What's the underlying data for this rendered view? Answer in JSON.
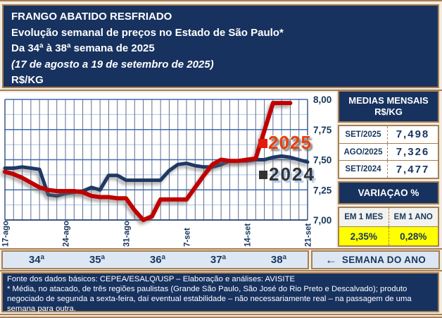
{
  "header": {
    "line1": "FRANGO ABATIDO RESFRIADO",
    "line2": "Evolução semanal de preços no Estado de São Paulo*",
    "line3": "Da 34ª à 38ª semana de 2025",
    "line4": "(17 de agosto a 19 de setembro de 2025)",
    "line5": "R$/KG"
  },
  "chart_data": {
    "type": "line",
    "title": "Evolução semanal de preços do frango abatido resfriado no Estado de São Paulo (R$/KG)",
    "ylabel": "R$/KG",
    "ylim": [
      7.0,
      8.0
    ],
    "yticks": [
      {
        "v": 8.0,
        "label": "8,00"
      },
      {
        "v": 7.75,
        "label": "7,75"
      },
      {
        "v": 7.5,
        "label": "7,50"
      },
      {
        "v": 7.25,
        "label": "7,25"
      },
      {
        "v": 7.0,
        "label": "7,00"
      }
    ],
    "major_gridlines": [
      7.25,
      7.5,
      7.75
    ],
    "minor_gridlines": [
      7.125,
      7.375,
      7.625,
      7.875
    ],
    "x_days_total": 35,
    "x_ticks": [
      {
        "day": 0,
        "label": "17-ago"
      },
      {
        "day": 7,
        "label": "24-ago"
      },
      {
        "day": 14,
        "label": "31-ago"
      },
      {
        "day": 21,
        "label": "7-set"
      },
      {
        "day": 28,
        "label": "14-set"
      },
      {
        "day": 35,
        "label": "21-set"
      }
    ],
    "colors": {
      "grid_minor": "#ABC4E2",
      "grid_vertical": "#5E6E8E",
      "grid_major": "#3E6CB3",
      "axis": "#24406F"
    },
    "series": [
      {
        "name": "2024",
        "color": "#1F3864",
        "width": 5,
        "start_day": 0,
        "values": [
          7.43,
          7.43,
          7.44,
          7.43,
          7.42,
          7.21,
          7.2,
          7.22,
          7.23,
          7.24,
          7.27,
          7.25,
          7.37,
          7.37,
          7.33,
          7.33,
          7.33,
          7.33,
          7.33,
          7.41,
          7.46,
          7.47,
          7.45,
          7.44,
          7.44,
          7.46,
          7.49,
          7.49,
          7.49,
          7.5,
          7.5,
          7.52,
          7.53,
          7.52,
          7.5,
          7.48
        ]
      },
      {
        "name": "2025",
        "color": "#C00000",
        "width": 6,
        "start_day": 0,
        "values": [
          7.4,
          7.38,
          7.35,
          7.31,
          7.27,
          7.25,
          7.24,
          7.24,
          7.24,
          7.23,
          7.2,
          7.19,
          7.19,
          7.18,
          7.18,
          7.08,
          7.0,
          7.03,
          7.17,
          7.17,
          7.17,
          7.17,
          7.27,
          7.37,
          7.46,
          7.5,
          7.49,
          7.49,
          7.5,
          7.51,
          7.74,
          7.97,
          7.97,
          7.97
        ]
      }
    ],
    "legend": [
      {
        "label": "2025",
        "swatch": "#E31B0C",
        "text_color": "#E8400C"
      },
      {
        "label": "2024",
        "swatch": "#333333",
        "text_color": "#333333"
      }
    ],
    "legend_position": "right-inside"
  },
  "week_axis": {
    "labels": [
      "34ª",
      "35ª",
      "36ª",
      "37ª",
      "38ª"
    ],
    "arrow": "←",
    "caption": "SEMANA DO ANO"
  },
  "side_panel": {
    "medias_title_line1": "MEDIAS MENSAIS",
    "medias_title_line2": "R$/KG",
    "rows": [
      {
        "label": "SET/2025",
        "value": "7,498"
      },
      {
        "label": "AGO/2025",
        "value": "7,326"
      },
      {
        "label": "SET/2024",
        "value": "7,477"
      }
    ],
    "variacao_title": "VARIAÇAO %",
    "variacao_headers": [
      "EM 1 MES",
      "EM 1 ANO"
    ],
    "variacao_values": [
      "2,35%",
      "0,28%"
    ]
  },
  "footer": {
    "line1": "Fonte dos dados básicos: CEPEA/ESALQ/USP – Elaboração e análises: AVISITE",
    "line2": "* Média, no atacado, de três regiões paulistas (Grande São Paulo, São José do Rio Preto e Descalvado); produto negociado de segunda a sexta-feira, daí eventual estabilidade – não necessariamente real – na passagem de uma semana para outra."
  }
}
